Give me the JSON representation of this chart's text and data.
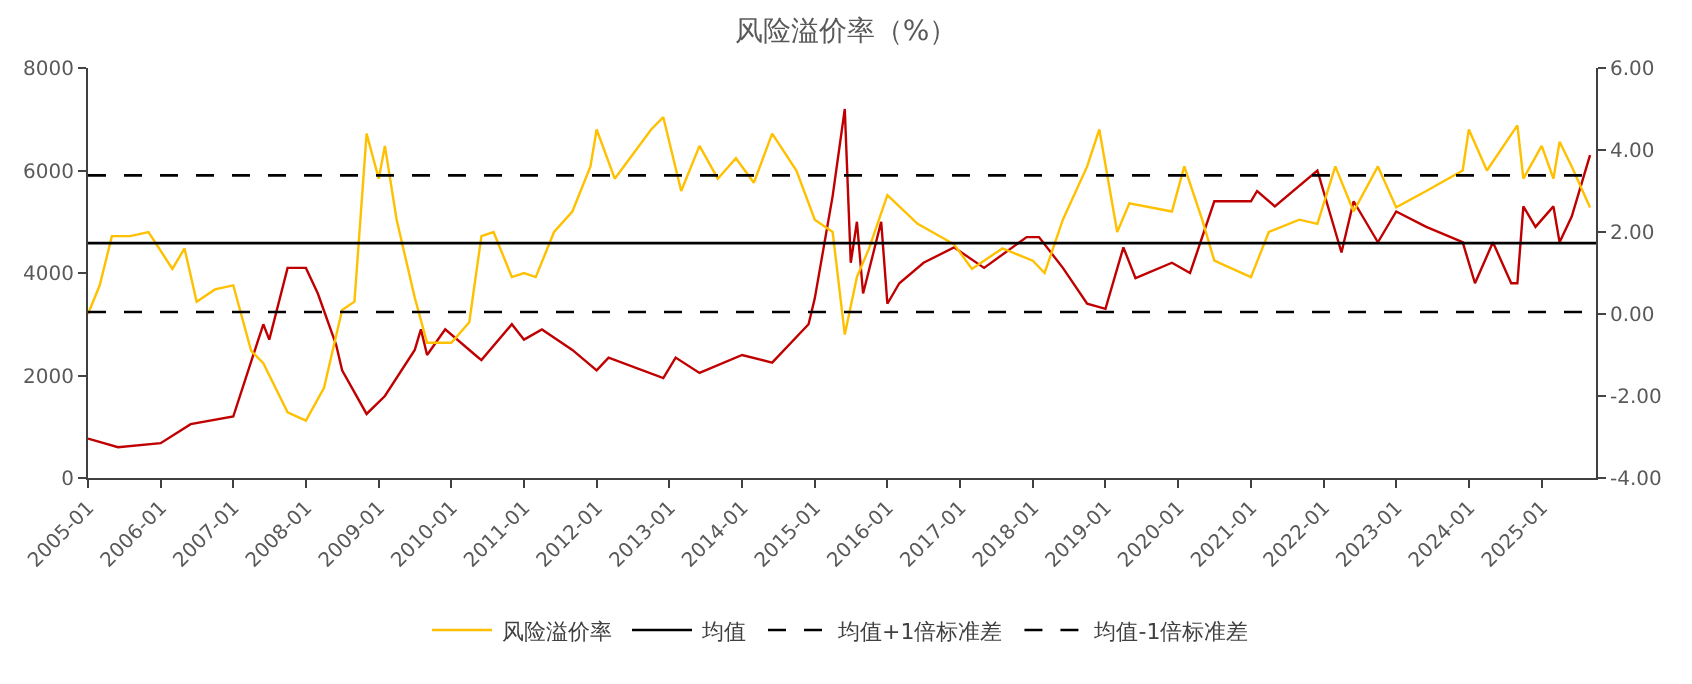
{
  "chart_data": {
    "type": "line",
    "title": "风险溢价率（%）",
    "xlim": [
      "2005-01",
      "2025-10"
    ],
    "xticks": [
      "2005-01",
      "2006-01",
      "2007-01",
      "2008-01",
      "2009-01",
      "2010-01",
      "2011-01",
      "2012-01",
      "2013-01",
      "2014-01",
      "2015-01",
      "2016-01",
      "2017-01",
      "2018-01",
      "2019-01",
      "2020-01",
      "2021-01",
      "2022-01",
      "2023-01",
      "2024-01",
      "2025-01"
    ],
    "ylim": [
      0,
      8000
    ],
    "yticks": [
      0,
      2000,
      4000,
      6000,
      8000
    ],
    "y2lim": [
      -4,
      6
    ],
    "y2ticks": [
      {
        "value": -4,
        "label": "-4.00"
      },
      {
        "value": -2,
        "label": "-2.00"
      },
      {
        "value": 0,
        "label": "0.00"
      },
      {
        "value": 2,
        "label": "2.00"
      },
      {
        "value": 4,
        "label": "4.00"
      },
      {
        "value": 6,
        "label": "6.00"
      }
    ],
    "legend": "bottom",
    "marker": "none",
    "series": [
      {
        "color": "#c00000",
        "axis": "y",
        "x": [
          "2005-01",
          "2005-06",
          "2006-01",
          "2006-06",
          "2007-01",
          "2007-06",
          "2007-07",
          "2007-10",
          "2008-01",
          "2008-03",
          "2008-06",
          "2008-07",
          "2008-11",
          "2009-02",
          "2009-07",
          "2009-08",
          "2009-09",
          "2009-12",
          "2010-05",
          "2010-06",
          "2010-11",
          "2011-01",
          "2011-04",
          "2011-09",
          "2012-01",
          "2012-03",
          "2012-12",
          "2013-02",
          "2013-06",
          "2014-01",
          "2014-06",
          "2014-12",
          "2015-01",
          "2015-04",
          "2015-06",
          "2015-07",
          "2015-08",
          "2015-09",
          "2015-12",
          "2016-01",
          "2016-03",
          "2016-07",
          "2016-12",
          "2017-05",
          "2017-12",
          "2018-02",
          "2018-06",
          "2018-10",
          "2019-01",
          "2019-04",
          "2019-06",
          "2019-12",
          "2020-03",
          "2020-07",
          "2021-01",
          "2021-02",
          "2021-05",
          "2021-12",
          "2022-04",
          "2022-06",
          "2022-10",
          "2023-01",
          "2023-06",
          "2023-12",
          "2024-02",
          "2024-05",
          "2024-08",
          "2024-09",
          "2024-10",
          "2024-12",
          "2025-03",
          "2025-04",
          "2025-06",
          "2025-09"
        ],
        "values": [
          770,
          600,
          680,
          1050,
          1200,
          3000,
          2700,
          4100,
          4100,
          3600,
          2600,
          2100,
          1250,
          1600,
          2500,
          2900,
          2400,
          2900,
          2400,
          2300,
          3000,
          2700,
          2900,
          2500,
          2100,
          2350,
          1950,
          2350,
          2050,
          2400,
          2250,
          3000,
          3500,
          5500,
          7200,
          4200,
          5000,
          3600,
          5000,
          3400,
          3800,
          4200,
          4500,
          4100,
          4700,
          4700,
          4100,
          3400,
          3300,
          4500,
          3900,
          4200,
          4000,
          5400,
          5400,
          5600,
          5300,
          6000,
          4400,
          5400,
          4600,
          5200,
          4900,
          4600,
          3800,
          4600,
          3800,
          3800,
          5300,
          4900,
          5300,
          4600,
          5100,
          6300
        ]
      },
      {
        "name": "风险溢价率",
        "color": "#ffc000",
        "axis": "y2",
        "x": [
          "2005-01",
          "2005-03",
          "2005-05",
          "2005-08",
          "2005-11",
          "2006-03",
          "2006-05",
          "2006-07",
          "2006-10",
          "2007-01",
          "2007-04",
          "2007-06",
          "2007-10",
          "2008-01",
          "2008-04",
          "2008-07",
          "2008-09",
          "2008-11",
          "2009-01",
          "2009-02",
          "2009-04",
          "2009-07",
          "2009-09",
          "2010-01",
          "2010-04",
          "2010-06",
          "2010-08",
          "2010-11",
          "2011-01",
          "2011-03",
          "2011-06",
          "2011-09",
          "2011-12",
          "2012-01",
          "2012-04",
          "2012-10",
          "2012-12",
          "2013-03",
          "2013-06",
          "2013-09",
          "2013-12",
          "2014-03",
          "2014-06",
          "2014-10",
          "2015-01",
          "2015-04",
          "2015-06",
          "2015-08",
          "2015-10",
          "2016-01",
          "2016-06",
          "2016-12",
          "2017-03",
          "2017-08",
          "2018-01",
          "2018-03",
          "2018-06",
          "2018-10",
          "2018-12",
          "2019-03",
          "2019-05",
          "2019-12",
          "2020-02",
          "2020-05",
          "2020-07",
          "2021-01",
          "2021-04",
          "2021-09",
          "2021-12",
          "2022-03",
          "2022-06",
          "2022-10",
          "2023-01",
          "2023-06",
          "2023-12",
          "2024-01",
          "2024-04",
          "2024-09",
          "2024-10",
          "2025-01",
          "2025-03",
          "2025-04",
          "2025-06",
          "2025-09"
        ],
        "values": [
          0.0,
          0.7,
          1.9,
          1.9,
          2.0,
          1.1,
          1.6,
          0.3,
          0.6,
          0.7,
          -0.9,
          -1.2,
          -2.4,
          -2.6,
          -1.8,
          0.1,
          0.3,
          4.4,
          3.3,
          4.1,
          2.3,
          0.4,
          -0.7,
          -0.7,
          -0.2,
          1.9,
          2.0,
          0.9,
          1.0,
          0.9,
          2.0,
          2.5,
          3.6,
          4.5,
          3.3,
          4.5,
          4.8,
          3.0,
          4.1,
          3.3,
          3.8,
          3.2,
          4.4,
          3.5,
          2.3,
          2.0,
          -0.5,
          0.9,
          1.6,
          2.9,
          2.2,
          1.7,
          1.1,
          1.6,
          1.3,
          1.0,
          2.3,
          3.6,
          4.5,
          2.0,
          2.7,
          2.5,
          3.6,
          2.3,
          1.3,
          0.9,
          2.0,
          2.3,
          2.2,
          3.6,
          2.5,
          3.6,
          2.6,
          3.0,
          3.5,
          4.5,
          3.5,
          4.6,
          3.3,
          4.1,
          3.3,
          4.2,
          3.6,
          2.6
        ]
      }
    ],
    "ref_lines": [
      {
        "axis": "y2",
        "value": 1.73,
        "label": "均值",
        "color": "#000000",
        "line_style": "solid"
      },
      {
        "axis": "y2",
        "value": 3.38,
        "label": "均值+1倍标准差",
        "color": "#000000",
        "line_style": "dashed"
      },
      {
        "axis": "y2",
        "value": 0.05,
        "label": "均值-1倍标准差",
        "color": "#000000",
        "line_style": "dashed"
      }
    ]
  }
}
